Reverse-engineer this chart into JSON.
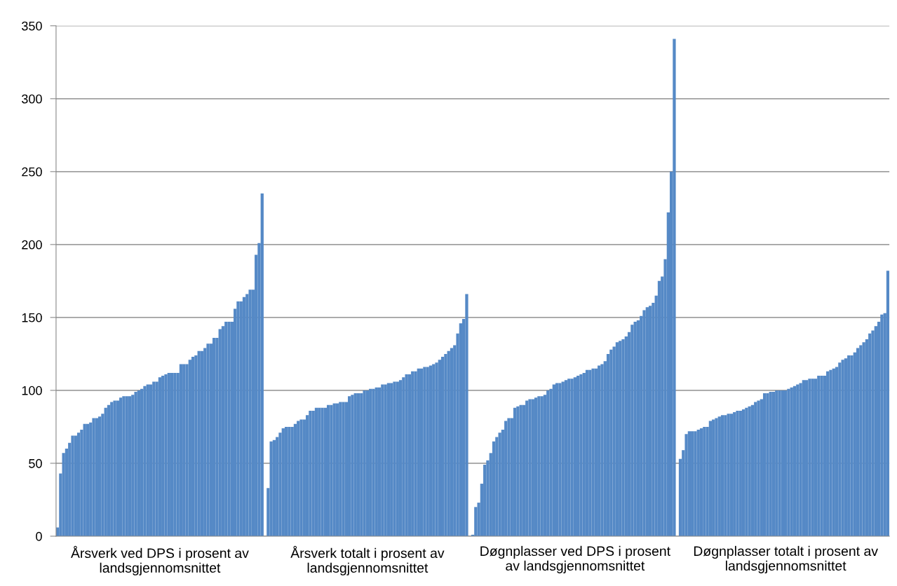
{
  "chart_data": {
    "type": "bar",
    "color": "#5589c6",
    "ylim": [
      0,
      350
    ],
    "yticks": [
      0,
      50,
      100,
      150,
      200,
      250,
      300,
      350
    ],
    "grid": "y",
    "categories": [
      null,
      null,
      null,
      null,
      null,
      null,
      null,
      null,
      null,
      null,
      null,
      null,
      null,
      null,
      null,
      null,
      null,
      null,
      null,
      null,
      null,
      null,
      null,
      null,
      null,
      null,
      null,
      null,
      null,
      null,
      null,
      null,
      null,
      null,
      "Årsverk ved DPS i prosent av\nlandsgjennomsnittet",
      null,
      null,
      null,
      null,
      null,
      null,
      null,
      null,
      null,
      null,
      null,
      null,
      null,
      null,
      null,
      null,
      null,
      null,
      null,
      null,
      null,
      null,
      null,
      null,
      null,
      null,
      null,
      null,
      null,
      null,
      null,
      null,
      null,
      null,
      null,
      null,
      null,
      null,
      null,
      null,
      null,
      null,
      null,
      null,
      null,
      null,
      null,
      null,
      null,
      null,
      null,
      null,
      null,
      null,
      null,
      null,
      null,
      null,
      null,
      null,
      null,
      null,
      null,
      null,
      null,
      null,
      null,
      null,
      "Årsverk totalt i prosent av\nlandsgjennomsnittet",
      null,
      null,
      null,
      null,
      null,
      null,
      null,
      null,
      null,
      null,
      null,
      null,
      null,
      null,
      null,
      null,
      null,
      null,
      null,
      null,
      null,
      null,
      null,
      null,
      null,
      null,
      null,
      null,
      null,
      null,
      null,
      null,
      null,
      null,
      null,
      null,
      null,
      null,
      null,
      null,
      null,
      null,
      null,
      null,
      null,
      null,
      null,
      null,
      null,
      null,
      null,
      null,
      null,
      null,
      null,
      null,
      null,
      null,
      null,
      null,
      null,
      null,
      null,
      null,
      null,
      null,
      null,
      null,
      "Døgnplasser ved DPS i prosent\nav landsgjennomsnittet",
      null,
      null,
      null,
      null,
      null,
      null,
      null,
      null,
      null,
      null,
      null,
      null,
      null,
      null,
      null,
      null,
      null,
      null,
      null,
      null,
      null,
      null,
      null,
      null,
      null,
      null,
      null,
      null,
      null,
      null,
      null,
      null,
      null,
      null,
      null,
      null,
      null,
      null,
      null,
      null,
      null,
      null,
      null,
      null,
      null,
      null,
      null,
      null,
      null,
      null,
      null,
      null,
      null,
      null,
      null,
      null,
      null,
      null,
      null,
      null,
      null,
      null,
      null,
      null,
      null,
      null,
      null,
      null,
      null,
      "Døgnplasser totalt i prosent av\nlandsgjennomsnittet",
      null,
      null,
      null,
      null,
      null,
      null,
      null,
      null,
      null,
      null,
      null,
      null,
      null,
      null,
      null,
      null,
      null,
      null,
      null,
      null,
      null,
      null,
      null,
      null,
      null,
      null,
      null,
      null,
      null,
      null,
      null,
      null,
      null,
      null
    ],
    "values": [
      6,
      43,
      57,
      60,
      64,
      69,
      69,
      71,
      73,
      77,
      77,
      78,
      81,
      81,
      82,
      84,
      88,
      90,
      92,
      93,
      93,
      95,
      96,
      96,
      96,
      97,
      99,
      100,
      101,
      103,
      104,
      104,
      106,
      106,
      109,
      110,
      111,
      112,
      112,
      112,
      112,
      118,
      118,
      118,
      121,
      123,
      124,
      127,
      127,
      129,
      132,
      132,
      136,
      136,
      142,
      144,
      147,
      147,
      147,
      156,
      161,
      161,
      164,
      166,
      169,
      169,
      193,
      201,
      235,
      null,
      33,
      65,
      66,
      68,
      71,
      74,
      75,
      75,
      75,
      77,
      79,
      80,
      80,
      83,
      86,
      86,
      88,
      88,
      88,
      88,
      90,
      90,
      91,
      91,
      92,
      92,
      92,
      96,
      97,
      98,
      98,
      98,
      100,
      100,
      101,
      101,
      102,
      102,
      104,
      104,
      105,
      105,
      106,
      106,
      107,
      109,
      111,
      111,
      113,
      113,
      115,
      115,
      116,
      116,
      117,
      118,
      119,
      121,
      123,
      125,
      127,
      129,
      131,
      139,
      146,
      149,
      166,
      null,
      1,
      20,
      23,
      36,
      49,
      52,
      57,
      65,
      68,
      71,
      73,
      79,
      81,
      81,
      88,
      89,
      90,
      90,
      93,
      94,
      94,
      95,
      96,
      96,
      97,
      100,
      101,
      104,
      105,
      105,
      106,
      107,
      108,
      108,
      109,
      110,
      111,
      112,
      114,
      114,
      115,
      115,
      117,
      118,
      120,
      125,
      128,
      130,
      133,
      134,
      135,
      137,
      140,
      145,
      147,
      148,
      151,
      155,
      157,
      158,
      160,
      165,
      175,
      178,
      190,
      222,
      250,
      341,
      null,
      53,
      59,
      70,
      72,
      72,
      72,
      73,
      74,
      75,
      75,
      79,
      80,
      81,
      82,
      83,
      83,
      84,
      84,
      85,
      86,
      86,
      87,
      88,
      89,
      90,
      92,
      93,
      94,
      98,
      98,
      99,
      99,
      100,
      100,
      100,
      100,
      101,
      102,
      103,
      104,
      105,
      107,
      107,
      108,
      108,
      108,
      110,
      110,
      110,
      113,
      114,
      115,
      116,
      119,
      121,
      122,
      124,
      124,
      126,
      129,
      131,
      133,
      135,
      139,
      141,
      144,
      147,
      152,
      153,
      182
    ]
  }
}
